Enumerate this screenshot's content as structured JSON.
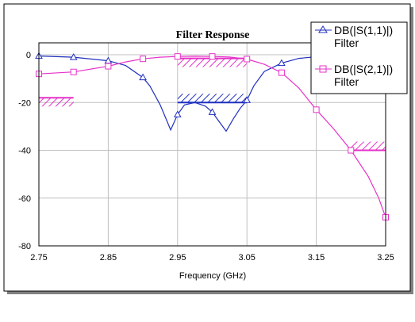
{
  "chart_data": {
    "type": "line",
    "title": "Filter Response",
    "xlabel": "Frequency (GHz)",
    "ylabel": "",
    "xlim": [
      2.75,
      3.25
    ],
    "ylim": [
      -80,
      5
    ],
    "xticks": [
      "2.75",
      "2.85",
      "2.95",
      "3.05",
      "3.15",
      "3.25"
    ],
    "yticks": [
      "0",
      "-20",
      "-40",
      "-60",
      "-80"
    ],
    "grid": true,
    "legend_position": "top-right",
    "colors": {
      "s11": "#1f2fbf",
      "s21": "#e632c8",
      "background": "#ffffff",
      "grid": "#c0c0c0"
    },
    "series": [
      {
        "name": "DB(|S(1,1)|)",
        "source": "Filter",
        "marker": "triangle",
        "x": [
          2.75,
          2.8,
          2.85,
          2.875,
          2.9,
          2.91,
          2.925,
          2.94,
          2.95,
          2.96,
          2.975,
          2.99,
          3.0,
          3.01,
          3.02,
          3.03,
          3.04,
          3.05,
          3.06,
          3.075,
          3.1,
          3.125,
          3.15,
          3.175,
          3.2
        ],
        "y": [
          -0.5,
          -1,
          -2.5,
          -4.5,
          -9.5,
          -13,
          -21,
          -31.5,
          -25,
          -21,
          -20,
          -21.5,
          -24,
          -28,
          -32,
          -27,
          -22.5,
          -19,
          -13,
          -7,
          -3.5,
          -1.5,
          -0.8,
          -0.5,
          -0.3
        ],
        "marker_x": [
          2.75,
          2.8,
          2.85,
          2.9,
          2.95,
          3.0,
          3.05,
          3.1
        ]
      },
      {
        "name": "DB(|S(2,1)|)",
        "source": "Filter",
        "marker": "square",
        "x": [
          2.75,
          2.8,
          2.85,
          2.875,
          2.9,
          2.925,
          2.95,
          2.975,
          3.0,
          3.025,
          3.05,
          3.075,
          3.1,
          3.125,
          3.15,
          3.175,
          3.2,
          3.225,
          3.24,
          3.25
        ],
        "y": [
          -8,
          -7.2,
          -4.8,
          -3,
          -1.7,
          -1,
          -0.7,
          -0.6,
          -0.7,
          -0.9,
          -1.8,
          -4,
          -7.5,
          -14,
          -23,
          -31,
          -40,
          -51,
          -60,
          -68
        ],
        "marker_x": [
          2.75,
          2.8,
          2.85,
          2.9,
          2.95,
          3.0,
          3.05,
          3.1,
          3.15,
          3.2,
          3.25
        ]
      }
    ],
    "spec_masks": [
      {
        "series": "DB(|S(2,1)|)",
        "x": [
          2.75,
          2.8
        ],
        "y": -18,
        "side": "below"
      },
      {
        "series": "DB(|S(2,1)|)",
        "x": [
          2.95,
          3.05
        ],
        "y": -1.5,
        "side": "below"
      },
      {
        "series": "DB(|S(1,1)|)",
        "x": [
          2.95,
          3.05
        ],
        "y": -20,
        "side": "above"
      },
      {
        "series": "DB(|S(2,1)|)",
        "x": [
          3.2,
          3.25
        ],
        "y": -40,
        "side": "above"
      }
    ]
  }
}
